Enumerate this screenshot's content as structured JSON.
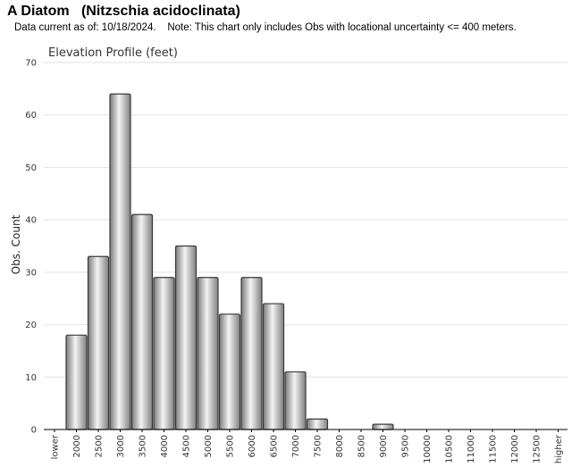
{
  "header": {
    "title": "A Diatom   (Nitzschia acidoclinata)",
    "subtitle": "Data current as of: 10/18/2024.    Note: This chart only includes Obs with locational uncertainty <= 400 meters."
  },
  "chart_data": {
    "type": "bar",
    "title": "Elevation Profile (feet)",
    "xlabel": "",
    "ylabel": "Obs. Count",
    "ylim": [
      0,
      70
    ],
    "yticks": [
      0,
      10,
      20,
      30,
      40,
      50,
      60,
      70
    ],
    "grid": true,
    "categories": [
      "lower",
      "2000",
      "2500",
      "3000",
      "3500",
      "4000",
      "4500",
      "5000",
      "5500",
      "6000",
      "6500",
      "7000",
      "7500",
      "8000",
      "8500",
      "9000",
      "9500",
      "10000",
      "10500",
      "11000",
      "11500",
      "12000",
      "12500",
      "higher"
    ],
    "values": [
      0,
      18,
      33,
      64,
      41,
      29,
      35,
      29,
      22,
      29,
      24,
      11,
      2,
      0,
      0,
      1,
      0,
      0,
      0,
      0,
      0,
      0,
      0,
      0
    ],
    "bar_color": "#b0b0b0"
  }
}
